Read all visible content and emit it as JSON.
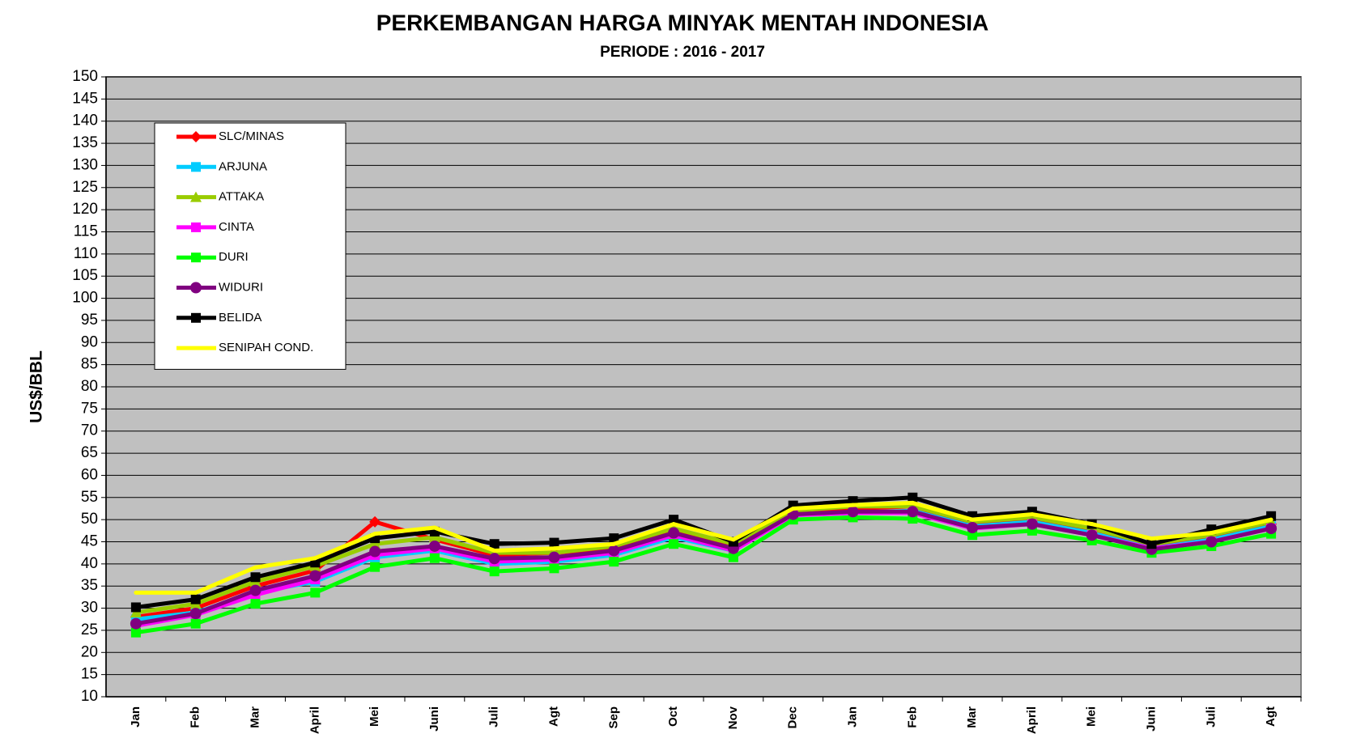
{
  "chart_data": {
    "type": "line",
    "title": "PERKEMBANGAN HARGA MINYAK MENTAH INDONESIA",
    "subtitle": "PERIODE : 2016 - 2017",
    "y_label": "US$/BBL",
    "categories": [
      "Jan",
      "Feb",
      "Mar",
      "April",
      "Mei",
      "Juni",
      "Juli",
      "Agt",
      "Sep",
      "Oct",
      "Nov",
      "Dec",
      "Jan",
      "Feb",
      "Mar",
      "April",
      "Mei",
      "Juni",
      "Juli",
      "Agt"
    ],
    "ylim": [
      10,
      150
    ],
    "yticks": [
      10,
      15,
      20,
      25,
      30,
      35,
      40,
      45,
      50,
      55,
      60,
      65,
      70,
      75,
      80,
      85,
      90,
      95,
      100,
      105,
      110,
      115,
      120,
      125,
      130,
      135,
      140,
      145,
      150
    ],
    "grid": true,
    "legend": "upper-left",
    "series": [
      {
        "name": "SLC/MINAS",
        "color": "#ff0000",
        "marker": "diamond",
        "values": [
          28,
          30,
          35,
          38.5,
          49.5,
          45.5,
          42,
          42.5,
          43.5,
          47.5,
          44,
          52,
          52.5,
          53,
          49,
          50,
          47.5,
          44,
          46,
          49
        ]
      },
      {
        "name": "ARJUNA",
        "color": "#00ccff",
        "marker": "square",
        "values": [
          27.5,
          29,
          33.5,
          36,
          41.5,
          43,
          40,
          40.5,
          42,
          46,
          43,
          51,
          51.5,
          52,
          48.5,
          49.5,
          47,
          43.5,
          45.5,
          48.5
        ]
      },
      {
        "name": "ATTAKA",
        "color": "#99cc00",
        "marker": "triangle",
        "values": [
          29,
          31,
          36,
          39.5,
          44.5,
          46,
          42.5,
          42.5,
          44,
          48,
          44.5,
          52,
          53,
          53,
          49.5,
          50.5,
          48,
          44.5,
          46.5,
          49.5
        ]
      },
      {
        "name": "CINTA",
        "color": "#ff00ff",
        "marker": "square",
        "values": [
          26,
          28.5,
          33,
          36.5,
          42,
          43.5,
          40.5,
          41,
          42.5,
          46.5,
          43,
          51,
          51.5,
          51.5,
          48,
          49,
          46.5,
          43.5,
          45,
          48
        ]
      },
      {
        "name": "DURI",
        "color": "#00ff00",
        "marker": "square",
        "values": [
          24.5,
          26.5,
          31,
          33.5,
          39.3,
          41.3,
          38.3,
          39,
          40.5,
          44.5,
          41.5,
          50,
          50.5,
          50.2,
          46.5,
          47.5,
          45.3,
          42.5,
          44,
          46.8
        ]
      },
      {
        "name": "WIDURI",
        "color": "#800080",
        "marker": "circle",
        "values": [
          26.5,
          28.8,
          34,
          37.3,
          42.8,
          44,
          41.2,
          41.5,
          43,
          47,
          43.5,
          51.2,
          51.8,
          51.8,
          48.2,
          49,
          46.5,
          43.3,
          45,
          48
        ]
      },
      {
        "name": "BELIDA",
        "color": "#000000",
        "marker": "square",
        "values": [
          30.2,
          32,
          37,
          40.3,
          45.8,
          47.3,
          44.5,
          44.8,
          45.8,
          50,
          45,
          53.2,
          54.2,
          55,
          50.8,
          51.8,
          49,
          44.5,
          47.8,
          50.8
        ]
      },
      {
        "name": "SENIPAH COND.",
        "color": "#ffff00",
        "marker": "none",
        "values": [
          33.5,
          33.5,
          39.2,
          41.3,
          46.8,
          48.2,
          43,
          43.5,
          44.5,
          49,
          45.5,
          52.5,
          53.3,
          53.8,
          50,
          51.2,
          49,
          45.7,
          47,
          50
        ]
      }
    ]
  }
}
